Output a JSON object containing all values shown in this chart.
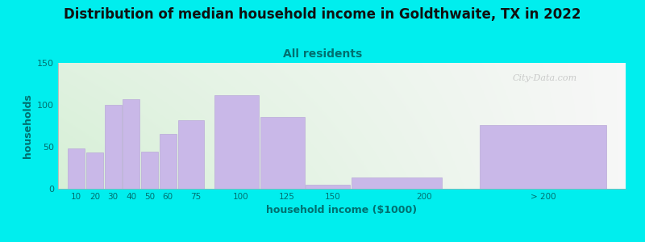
{
  "title": "Distribution of median household income in Goldthwaite, TX in 2022",
  "subtitle": "All residents",
  "xlabel": "household income ($1000)",
  "ylabel": "households",
  "categories": [
    "10",
    "20",
    "30",
    "40",
    "50",
    "60",
    "75",
    "100",
    "125",
    "150",
    "200",
    "> 200"
  ],
  "values": [
    48,
    43,
    100,
    107,
    44,
    65,
    82,
    112,
    86,
    5,
    13,
    76
  ],
  "bar_color": "#c9b8e8",
  "bar_edgecolor": "#baaad8",
  "bg_color": "#00eeee",
  "title_fontsize": 12,
  "subtitle_fontsize": 10,
  "subtitle_color": "#007070",
  "ylabel_color": "#007070",
  "xlabel_color": "#007070",
  "tick_color": "#007070",
  "title_color": "#111111",
  "ylim": [
    0,
    150
  ],
  "yticks": [
    0,
    50,
    100,
    150
  ],
  "watermark": "City-Data.com",
  "bar_lefts": [
    5,
    15,
    25,
    35,
    45,
    55,
    65,
    85,
    110,
    135,
    160,
    230
  ],
  "bar_widths": [
    10,
    10,
    10,
    10,
    10,
    10,
    15,
    25,
    25,
    25,
    50,
    70
  ],
  "xlim": [
    0,
    310
  ],
  "gradient_left_color": "#d8f0d8",
  "gradient_right_color": "#f8f8f8"
}
